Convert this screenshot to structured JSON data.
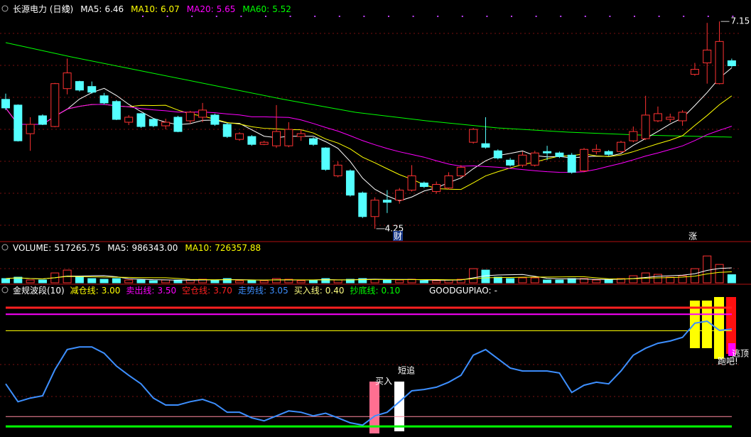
{
  "chart_data": [
    {
      "type": "candlestick",
      "title": "长源电力 (日线)",
      "mas": [
        {
          "name": "MA5:",
          "value": 6.46,
          "color": "#ffffff"
        },
        {
          "name": "MA10:",
          "value": 6.07,
          "color": "#ffff00"
        },
        {
          "name": "MA20:",
          "value": 5.65,
          "color": "#ff00ff"
        },
        {
          "name": "MA60:",
          "value": 5.52,
          "color": "#00ff00"
        }
      ],
      "up_color": "#ff3232",
      "down_color": "#54ffff",
      "ylim": [
        4.07,
        7.45
      ],
      "open": [
        6.06,
        5.98,
        5.58,
        5.83,
        5.68,
        6.21,
        6.31,
        6.24,
        6.11,
        6.03,
        5.74,
        5.86,
        5.78,
        5.69,
        5.81,
        5.76,
        5.81,
        5.84,
        5.71,
        5.5,
        5.54,
        5.43,
        5.41,
        5.41,
        5.54,
        5.51,
        5.38,
        4.99,
        5.06,
        4.75,
        4.42,
        4.65,
        4.65,
        4.79,
        4.89,
        4.77,
        4.82,
        4.99,
        5.46,
        5.44,
        5.34,
        5.21,
        5.14,
        5.14,
        5.33,
        5.31,
        5.28,
        5.06,
        5.33,
        5.33,
        5.33,
        5.48,
        5.51,
        5.76,
        5.78,
        5.76,
        6.41,
        6.57,
        6.28,
        6.6
      ],
      "high": [
        6.14,
        5.99,
        5.81,
        5.85,
        6.29,
        6.63,
        6.32,
        6.31,
        6.15,
        6.05,
        5.84,
        5.87,
        5.8,
        5.79,
        5.83,
        5.9,
        6.01,
        5.86,
        5.73,
        5.6,
        5.56,
        5.48,
        5.98,
        5.74,
        5.64,
        5.53,
        5.39,
        5.19,
        5.08,
        4.77,
        4.69,
        4.79,
        4.82,
        5.14,
        4.91,
        4.91,
        5.04,
        5.14,
        5.66,
        5.81,
        5.36,
        5.24,
        5.33,
        5.34,
        5.41,
        5.33,
        5.31,
        5.38,
        5.43,
        5.35,
        5.48,
        5.68,
        6.11,
        5.96,
        5.86,
        5.91,
        6.57,
        7.13,
        7.15,
        6.63
      ],
      "low": [
        5.91,
        5.47,
        5.34,
        5.7,
        5.67,
        6.13,
        6.17,
        6.14,
        5.99,
        5.77,
        5.7,
        5.66,
        5.67,
        5.64,
        5.6,
        5.72,
        5.74,
        5.69,
        5.52,
        5.48,
        5.41,
        5.42,
        5.38,
        5.39,
        5.48,
        5.41,
        5.06,
        4.97,
        4.7,
        4.4,
        4.25,
        4.47,
        4.6,
        4.77,
        4.82,
        4.74,
        4.8,
        4.97,
        5.44,
        5.37,
        5.22,
        5.12,
        5.11,
        5.12,
        5.21,
        5.24,
        5.02,
        5.04,
        5.29,
        5.27,
        5.31,
        5.46,
        5.49,
        5.74,
        5.74,
        5.69,
        6.39,
        6.28,
        6.27,
        6.51
      ],
      "close": [
        5.94,
        5.48,
        5.71,
        5.71,
        6.28,
        6.43,
        6.19,
        6.16,
        6.01,
        5.78,
        5.81,
        5.68,
        5.69,
        5.74,
        5.61,
        5.88,
        5.91,
        5.71,
        5.54,
        5.58,
        5.43,
        5.46,
        5.61,
        5.64,
        5.58,
        5.43,
        5.08,
        5.14,
        4.72,
        4.42,
        4.65,
        4.62,
        4.79,
        4.99,
        4.84,
        4.87,
        4.99,
        5.11,
        5.64,
        5.39,
        5.24,
        5.14,
        5.28,
        5.31,
        5.31,
        5.26,
        5.04,
        5.36,
        5.36,
        5.29,
        5.46,
        5.61,
        5.84,
        5.86,
        5.81,
        5.88,
        6.48,
        6.75,
        6.87,
        6.53
      ],
      "markers": [
        "财",
        "涨"
      ]
    },
    {
      "type": "bar",
      "title": "VOLUME:",
      "mas": [
        {
          "name": "MA5:",
          "value": {
            "value": 986343,
            "label": "986343.00"
          },
          "color": "#ffffff"
        },
        {
          "name": "MA10:",
          "value": 726357.88,
          "color": "#ffff00"
        }
      ],
      "ylim": [
        0,
        1900000
      ],
      "values": [
        270000,
        360000,
        180000,
        180000,
        630000,
        810000,
        360000,
        270000,
        225000,
        270000,
        180000,
        180000,
        135000,
        180000,
        180000,
        180000,
        225000,
        180000,
        270000,
        135000,
        135000,
        135000,
        270000,
        225000,
        135000,
        135000,
        270000,
        180000,
        225000,
        270000,
        225000,
        180000,
        180000,
        225000,
        135000,
        135000,
        180000,
        225000,
        900000,
        810000,
        360000,
        270000,
        315000,
        315000,
        180000,
        180000,
        270000,
        270000,
        180000,
        180000,
        270000,
        450000,
        630000,
        540000,
        360000,
        450000,
        900000,
        1710000,
        1170000,
        517265.75
      ]
    },
    {
      "type": "line",
      "title": "金规波段(10)",
      "levels": [
        {
          "name": "减仓线:",
          "value": {
            "value": 3,
            "label": "3.00"
          },
          "color": "#ffff00"
        },
        {
          "name": "卖出线:",
          "value": {
            "value": 3.5,
            "label": "3.50"
          },
          "color": "#ff00ff"
        },
        {
          "name": "空仓线:",
          "value": {
            "value": 3.7,
            "label": "3.70"
          },
          "color": "#ff2020"
        }
      ],
      "series": [
        {
          "name": "走势线:",
          "color": "#3d8fff",
          "values": [
            1.39,
            0.85,
            0.96,
            1.03,
            1.82,
            2.43,
            2.51,
            2.51,
            2.32,
            1.93,
            1.65,
            1.39,
            0.96,
            0.75,
            0.75,
            0.85,
            0.92,
            0.79,
            0.53,
            0.53,
            0.36,
            0.27,
            0.42,
            0.57,
            0.53,
            0.42,
            0.5,
            0.36,
            0.21,
            0.14,
            0.42,
            0.53,
            0.85,
            1.18,
            1.22,
            1.29,
            1.44,
            1.65,
            2.26,
            2.43,
            2.15,
            1.87,
            1.78,
            1.78,
            1.78,
            1.72,
            1.13,
            1.35,
            1.44,
            1.39,
            1.78,
            2.26,
            2.47,
            2.62,
            2.69,
            2.8,
            3.23,
            3.29,
            3.01,
            3.05
          ]
        }
      ],
      "low_levels": [
        {
          "name": "买入线:",
          "value": {
            "value": 0.4,
            "label": "0.40"
          },
          "color": "#ff8aa0"
        },
        {
          "name": "抄底线:",
          "value": {
            "value": 0.1,
            "label": "0.10"
          },
          "color": "#00ff00"
        }
      ],
      "extra": {
        "name": "GOODGUPIAO:",
        "value": "-"
      },
      "ylim": [
        -0.22,
        4.41
      ],
      "signals": [
        "买入",
        "短追",
        "逃顶",
        "跑吧!"
      ]
    }
  ]
}
